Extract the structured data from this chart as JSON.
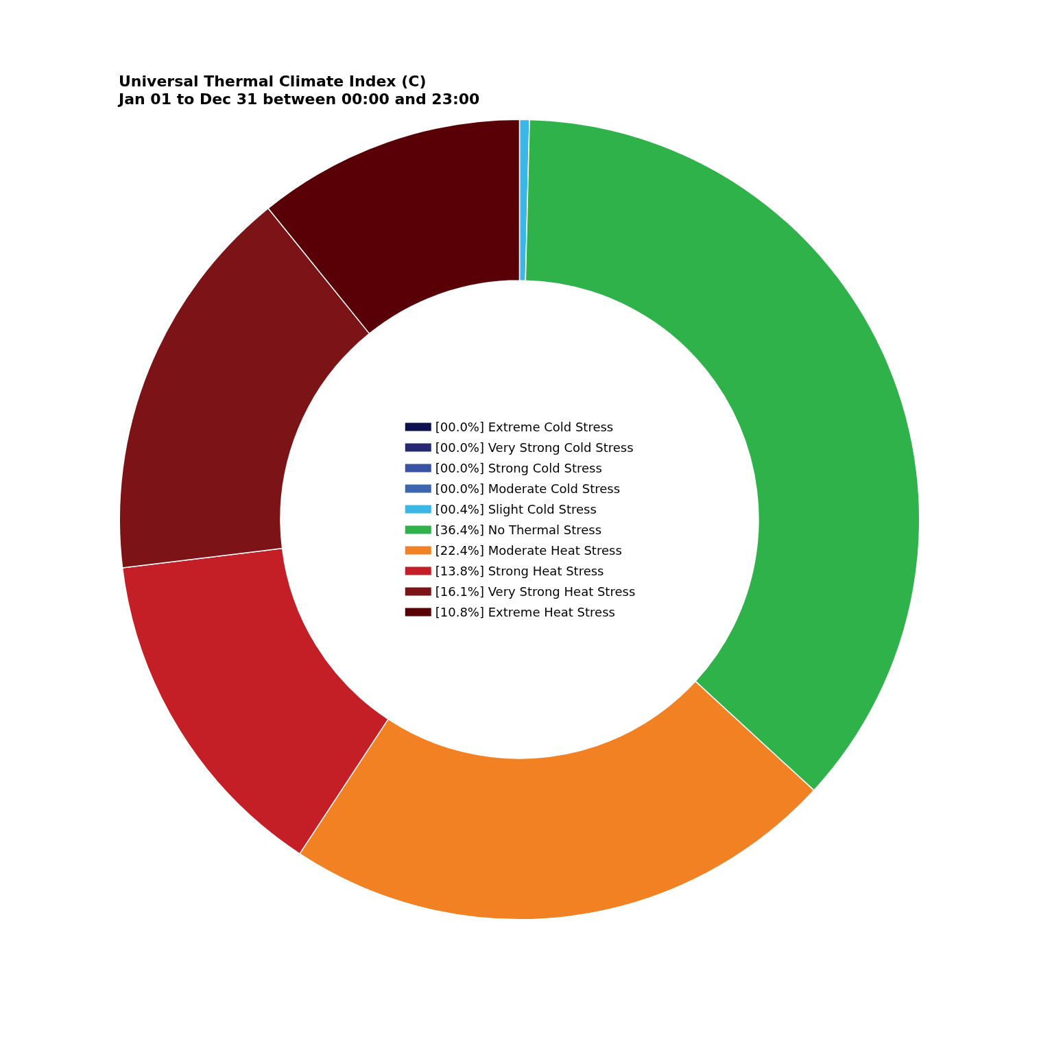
{
  "chart_data": {
    "type": "donut",
    "title": "Universal Thermal Climate Index (C)\nJan 01 to Dec 31 between 00:00 and 23:00",
    "categories": [
      "[00.0%] Extreme Cold Stress",
      "[00.0%] Very Strong Cold Stress",
      "[00.0%] Strong Cold Stress",
      "[00.0%] Moderate Cold Stress",
      "[00.4%] Slight Cold Stress",
      "[36.4%] No Thermal Stress",
      "[22.4%] Moderate Heat Stress",
      "[13.8%] Strong Heat Stress",
      "[16.1%] Very Strong Heat Stress",
      "[10.8%] Extreme Heat Stress"
    ],
    "values": [
      0,
      0,
      0,
      0,
      0.4,
      36.4,
      22.4,
      13.8,
      16.1,
      10.8
    ],
    "colors": [
      "#0c1150",
      "#262872",
      "#3853a4",
      "#3c66b0",
      "#3bb6e8",
      "#2fb24a",
      "#f28124",
      "#c41f26",
      "#7c1417",
      "#590007"
    ],
    "legend": "center"
  }
}
